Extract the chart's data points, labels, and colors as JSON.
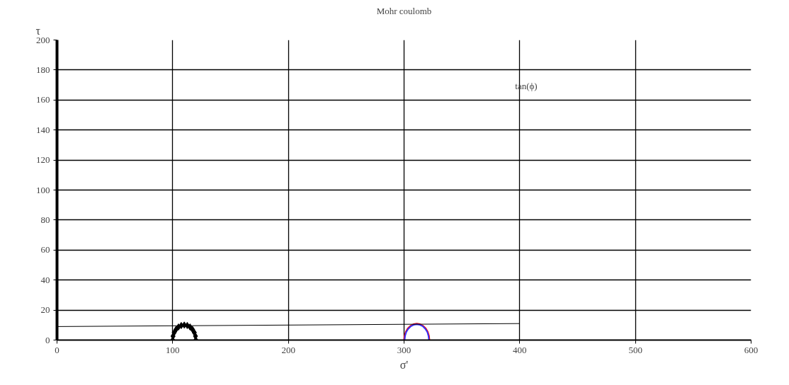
{
  "chart_data": {
    "type": "line",
    "title": "Mohr coulomb",
    "xlabel": "σ'",
    "ylabel": "τ",
    "annotations": [
      "tan(ϕ)"
    ],
    "series": [
      {
        "type": "scatter",
        "color": "#000000",
        "marker": "diamond",
        "x": [
          120,
          119.7,
          118.7,
          117.1,
          115,
          112.6,
          110,
          107.4,
          105,
          102.9,
          101.3,
          100.3,
          100
        ],
        "values": [
          0,
          2.6,
          5,
          7.1,
          8.7,
          9.7,
          10,
          9.7,
          8.7,
          7.1,
          5,
          2.6,
          0
        ]
      },
      {
        "color": "#ff0000",
        "x": [
          322,
          321.6,
          320.5,
          318.8,
          316.5,
          313.8,
          311,
          308.2,
          305.5,
          303.2,
          301.5,
          300.4,
          300
        ],
        "values": [
          0,
          2.8,
          5.5,
          7.8,
          9.5,
          10.6,
          11,
          10.6,
          9.5,
          7.8,
          5.5,
          2.8,
          0
        ]
      },
      {
        "color": "#3333ff",
        "x": [
          321.5,
          321.1,
          320.1,
          318.4,
          316.3,
          313.7,
          311,
          308.3,
          305.8,
          303.6,
          301.9,
          300.9,
          300.5
        ],
        "values": [
          0,
          2.7,
          5.3,
          7.4,
          9.1,
          10.1,
          10.5,
          10.1,
          9.1,
          7.4,
          5.3,
          2.7,
          0
        ]
      },
      {
        "color": "#000000",
        "x": [
          0,
          400
        ],
        "values": [
          9,
          11
        ]
      }
    ],
    "xlim": [
      0,
      600
    ],
    "xticks": [
      0,
      100,
      200,
      300,
      400,
      500,
      600
    ],
    "ylim": [
      0,
      200
    ],
    "yticks": [
      0,
      20,
      40,
      60,
      80,
      100,
      120,
      140,
      160,
      180,
      200
    ],
    "grid": true,
    "line_style": "solid"
  }
}
